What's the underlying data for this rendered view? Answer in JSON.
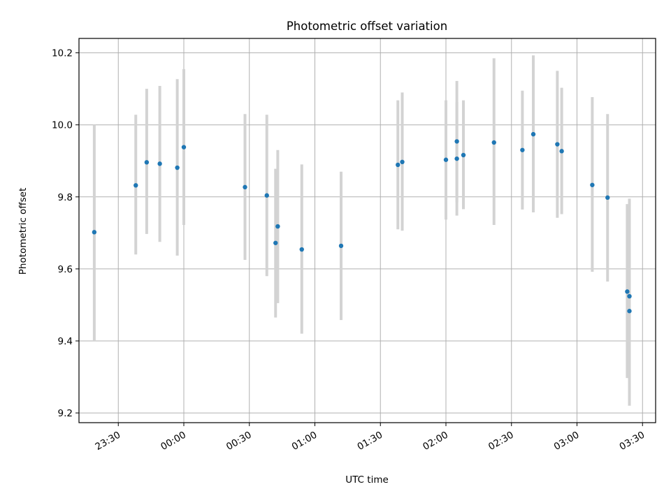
{
  "chart_data": {
    "type": "scatter",
    "title": "Photometric offset variation",
    "xlabel": "UTC time",
    "ylabel": "Photometric offset",
    "x_unit": "time of day (HH:MM, UTC); consecutive night 23:20 to 03:35",
    "xlim": [
      "23:12",
      "03:36"
    ],
    "ylim": [
      9.173,
      10.24
    ],
    "x_ticks": [
      "23:30",
      "00:00",
      "00:30",
      "01:00",
      "01:30",
      "02:00",
      "02:30",
      "03:00",
      "03:30"
    ],
    "y_ticks": [
      "9.2",
      "9.4",
      "9.6",
      "9.8",
      "10.0",
      "10.2"
    ],
    "grid": true,
    "marker_color": "#1f77b4",
    "errorbar_color": "#d3d3d3",
    "points": [
      {
        "x": "23:19",
        "y": 9.702,
        "ylo": 9.4,
        "yhi": 10.0
      },
      {
        "x": "23:38",
        "y": 9.832,
        "ylo": 9.64,
        "yhi": 10.028
      },
      {
        "x": "23:43",
        "y": 9.896,
        "ylo": 9.697,
        "yhi": 10.1
      },
      {
        "x": "23:49",
        "y": 9.892,
        "ylo": 9.675,
        "yhi": 10.108
      },
      {
        "x": "23:57",
        "y": 9.881,
        "ylo": 9.637,
        "yhi": 10.127
      },
      {
        "x": "00:00",
        "y": 9.938,
        "ylo": 9.722,
        "yhi": 10.155
      },
      {
        "x": "00:28",
        "y": 9.827,
        "ylo": 9.625,
        "yhi": 10.03
      },
      {
        "x": "00:38",
        "y": 9.804,
        "ylo": 9.58,
        "yhi": 10.028
      },
      {
        "x": "00:42",
        "y": 9.672,
        "ylo": 9.465,
        "yhi": 9.878
      },
      {
        "x": "00:43",
        "y": 9.718,
        "ylo": 9.505,
        "yhi": 9.93
      },
      {
        "x": "00:54",
        "y": 9.654,
        "ylo": 9.42,
        "yhi": 9.89
      },
      {
        "x": "01:12",
        "y": 9.664,
        "ylo": 9.458,
        "yhi": 9.87
      },
      {
        "x": "01:38",
        "y": 9.889,
        "ylo": 9.71,
        "yhi": 10.068
      },
      {
        "x": "01:40",
        "y": 9.897,
        "ylo": 9.706,
        "yhi": 10.09
      },
      {
        "x": "02:00",
        "y": 9.903,
        "ylo": 9.737,
        "yhi": 10.068
      },
      {
        "x": "02:05",
        "y": 9.954,
        "ylo": 9.785,
        "yhi": 10.122
      },
      {
        "x": "02:05",
        "y": 9.906,
        "ylo": 9.748,
        "yhi": 10.063
      },
      {
        "x": "02:08",
        "y": 9.916,
        "ylo": 9.766,
        "yhi": 10.068
      },
      {
        "x": "02:22",
        "y": 9.951,
        "ylo": 9.722,
        "yhi": 10.185
      },
      {
        "x": "02:35",
        "y": 9.93,
        "ylo": 9.765,
        "yhi": 10.095
      },
      {
        "x": "02:40",
        "y": 9.974,
        "ylo": 9.757,
        "yhi": 10.193
      },
      {
        "x": "02:51",
        "y": 9.946,
        "ylo": 9.742,
        "yhi": 10.15
      },
      {
        "x": "02:53",
        "y": 9.927,
        "ylo": 9.752,
        "yhi": 10.103
      },
      {
        "x": "03:07",
        "y": 9.833,
        "ylo": 9.592,
        "yhi": 10.077
      },
      {
        "x": "03:14",
        "y": 9.798,
        "ylo": 9.565,
        "yhi": 10.03
      },
      {
        "x": "03:23",
        "y": 9.537,
        "ylo": 9.297,
        "yhi": 9.78
      },
      {
        "x": "03:24",
        "y": 9.524,
        "ylo": 9.255,
        "yhi": 9.795
      },
      {
        "x": "03:24",
        "y": 9.483,
        "ylo": 9.22,
        "yhi": 9.748
      }
    ]
  }
}
